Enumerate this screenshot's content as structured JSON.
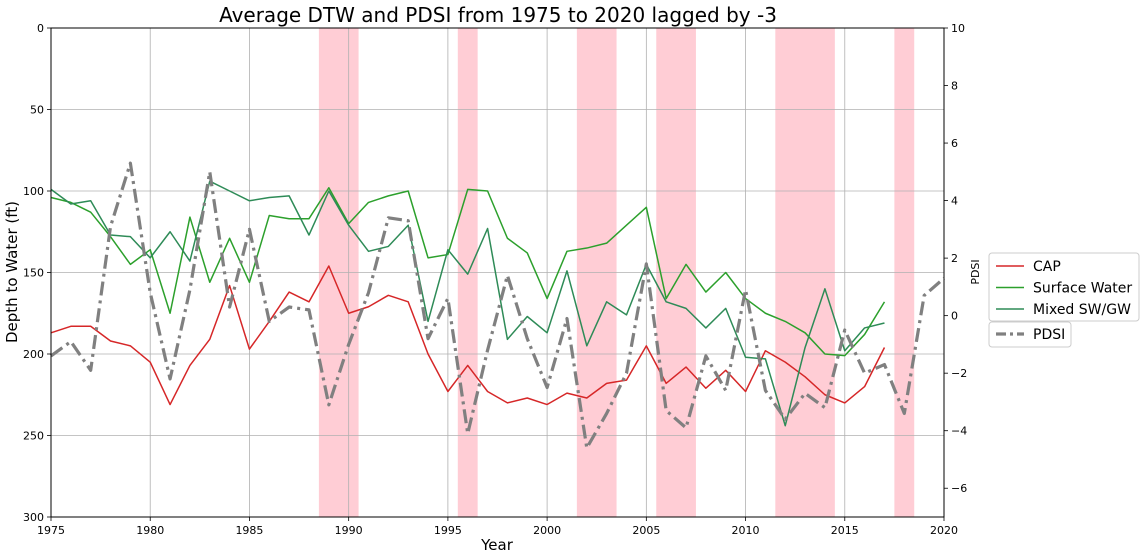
{
  "chart_data": {
    "type": "line",
    "title": "Average DTW and PDSI from 1975 to 2020 lagged by -3",
    "xlabel": "Year",
    "ylabel": "Depth to Water (ft)",
    "y2label": "PDSI",
    "xlim": [
      1975,
      2020
    ],
    "ylim": [
      300,
      0
    ],
    "y2lim": [
      -7,
      10
    ],
    "y_inverted": true,
    "grid": true,
    "legend_position": "center-right outside",
    "x_ticks": [
      1975,
      1980,
      1985,
      1990,
      1995,
      2000,
      2005,
      2010,
      2015,
      2020
    ],
    "y_ticks": [
      0,
      50,
      100,
      150,
      200,
      250,
      300
    ],
    "y2_ticks": [
      -6,
      -4,
      -2,
      0,
      2,
      4,
      6,
      8,
      10
    ],
    "shaded_periods": [
      [
        1988.5,
        1990.5
      ],
      [
        1995.5,
        1996.5
      ],
      [
        2001.5,
        2003.5
      ],
      [
        2005.5,
        2007.5
      ],
      [
        2011.5,
        2014.5
      ],
      [
        2017.5,
        2018.5
      ]
    ],
    "shade_color": "#ffc0cb",
    "series": [
      {
        "name": "CAP",
        "axis": "left",
        "color": "#d62728",
        "style": "solid",
        "x": [
          1975,
          1976,
          1977,
          1978,
          1979,
          1980,
          1981,
          1982,
          1983,
          1984,
          1985,
          1986,
          1987,
          1988,
          1989,
          1990,
          1991,
          1992,
          1993,
          1994,
          1995,
          1996,
          1997,
          1998,
          1999,
          2000,
          2001,
          2002,
          2003,
          2004,
          2005,
          2006,
          2007,
          2008,
          2009,
          2010,
          2011,
          2012,
          2013,
          2014,
          2015,
          2016,
          2017
        ],
        "values": [
          187,
          183,
          183,
          192,
          195,
          205,
          231,
          207,
          191,
          158,
          197,
          180,
          162,
          168,
          146,
          175,
          171,
          164,
          168,
          200,
          223,
          207,
          223,
          230,
          227,
          231,
          224,
          227,
          218,
          216,
          195,
          218,
          208,
          221,
          210,
          223,
          198,
          205,
          214,
          225,
          230,
          220,
          196
        ]
      },
      {
        "name": "Surface Water",
        "axis": "left",
        "color": "#2ca02c",
        "style": "solid",
        "x": [
          1975,
          1976,
          1977,
          1978,
          1979,
          1980,
          1981,
          1982,
          1983,
          1984,
          1985,
          1986,
          1987,
          1988,
          1989,
          1990,
          1991,
          1992,
          1993,
          1994,
          1995,
          1996,
          1997,
          1998,
          1999,
          2000,
          2001,
          2002,
          2003,
          2004,
          2005,
          2006,
          2007,
          2008,
          2009,
          2010,
          2011,
          2012,
          2013,
          2014,
          2015,
          2016,
          2017
        ],
        "values": [
          104,
          107,
          113,
          128,
          145,
          136,
          175,
          116,
          156,
          129,
          156,
          115,
          117,
          117,
          98,
          120,
          107,
          103,
          100,
          141,
          139,
          99,
          100,
          129,
          138,
          166,
          137,
          135,
          132,
          121,
          110,
          166,
          145,
          162,
          150,
          166,
          175,
          180,
          187,
          200,
          201,
          188,
          168
        ]
      },
      {
        "name": "Mixed SW/GW",
        "axis": "left",
        "color": "#2e8b57",
        "style": "solid",
        "x": [
          1975,
          1976,
          1977,
          1978,
          1979,
          1980,
          1981,
          1982,
          1983,
          1984,
          1985,
          1986,
          1987,
          1988,
          1989,
          1990,
          1991,
          1992,
          1993,
          1994,
          1995,
          1996,
          1997,
          1998,
          1999,
          2000,
          2001,
          2002,
          2003,
          2004,
          2005,
          2006,
          2007,
          2008,
          2009,
          2010,
          2011,
          2012,
          2013,
          2014,
          2015,
          2016,
          2017
        ],
        "values": [
          99,
          108,
          106,
          127,
          128,
          141,
          125,
          143,
          94,
          100,
          106,
          104,
          103,
          127,
          100,
          121,
          137,
          134,
          121,
          180,
          136,
          151,
          123,
          191,
          177,
          187,
          149,
          195,
          168,
          176,
          145,
          168,
          172,
          184,
          172,
          202,
          203,
          244,
          196,
          160,
          198,
          184,
          181
        ]
      },
      {
        "name": "PDSI",
        "axis": "right",
        "color": "#808080",
        "style": "dashdot",
        "x": [
          1975,
          1976,
          1977,
          1978,
          1979,
          1980,
          1981,
          1982,
          1983,
          1984,
          1985,
          1986,
          1987,
          1988,
          1989,
          1990,
          1991,
          1992,
          1993,
          1994,
          1995,
          1996,
          1997,
          1998,
          1999,
          2000,
          2001,
          2002,
          2003,
          2004,
          2005,
          2006,
          2007,
          2008,
          2009,
          2010,
          2011,
          2012,
          2013,
          2014,
          2015,
          2016,
          2017,
          2018,
          2019,
          2020
        ],
        "values": [
          -1.4,
          -0.9,
          -1.9,
          3.1,
          5.3,
          0.8,
          -2.2,
          0.9,
          5.0,
          0.3,
          3.0,
          -0.2,
          0.3,
          0.2,
          -3.1,
          -1.0,
          0.8,
          3.4,
          3.3,
          -0.8,
          0.6,
          -4.1,
          -1.2,
          1.4,
          -0.8,
          -2.5,
          -0.1,
          -4.6,
          -3.4,
          -2.0,
          1.8,
          -3.3,
          -3.9,
          -1.4,
          -2.6,
          0.9,
          -2.6,
          -3.6,
          -2.7,
          -3.2,
          -0.5,
          -2.0,
          -1.7,
          -3.4,
          0.7,
          1.3
        ]
      }
    ]
  }
}
